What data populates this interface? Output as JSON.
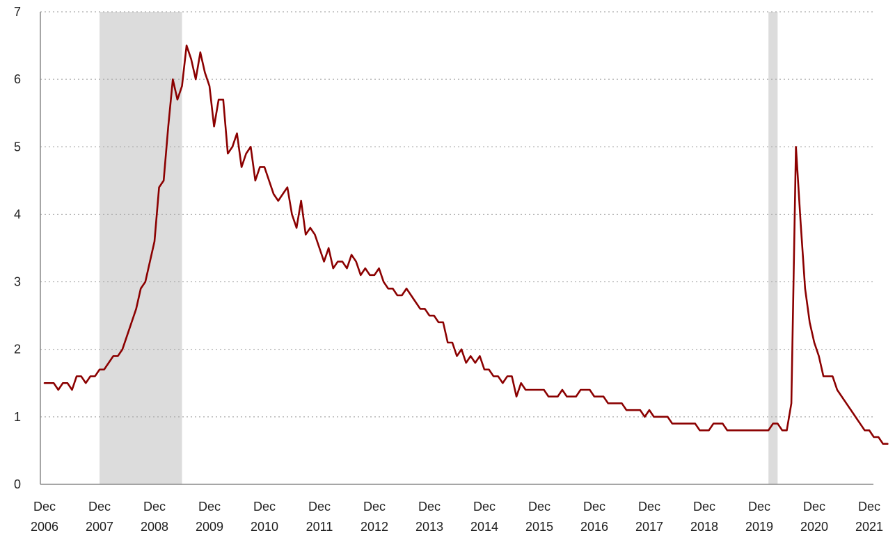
{
  "chart_data": {
    "type": "line",
    "title": "",
    "xlabel": "",
    "ylabel": "",
    "ylim": [
      0,
      7
    ],
    "y_ticks": [
      "0",
      "1",
      "2",
      "3",
      "4",
      "5",
      "6",
      "7"
    ],
    "grid": "horizontal dotted",
    "x_tick_labels": [
      {
        "month": "Dec",
        "year": "2006"
      },
      {
        "month": "Dec",
        "year": "2007"
      },
      {
        "month": "Dec",
        "year": "2008"
      },
      {
        "month": "Dec",
        "year": "2009"
      },
      {
        "month": "Dec",
        "year": "2010"
      },
      {
        "month": "Dec",
        "year": "2011"
      },
      {
        "month": "Dec",
        "year": "2012"
      },
      {
        "month": "Dec",
        "year": "2013"
      },
      {
        "month": "Dec",
        "year": "2014"
      },
      {
        "month": "Dec",
        "year": "2015"
      },
      {
        "month": "Dec",
        "year": "2016"
      },
      {
        "month": "Dec",
        "year": "2017"
      },
      {
        "month": "Dec",
        "year": "2018"
      },
      {
        "month": "Dec",
        "year": "2019"
      },
      {
        "month": "Dec",
        "year": "2020"
      },
      {
        "month": "Dec",
        "year": "2021"
      }
    ],
    "recessions": [
      {
        "start": "2007-12",
        "end": "2009-06"
      },
      {
        "start": "2020-02",
        "end": "2020-04"
      }
    ],
    "colors": {
      "line": "#8B0000",
      "recession": "#DCDCDC",
      "grid": "#AAAAAA",
      "axis": "#888888"
    },
    "series": [
      {
        "start": "2006-12",
        "frequency": "monthly",
        "values": [
          1.5,
          1.5,
          1.5,
          1.4,
          1.5,
          1.5,
          1.4,
          1.6,
          1.6,
          1.5,
          1.6,
          1.6,
          1.7,
          1.7,
          1.8,
          1.9,
          1.9,
          2.0,
          2.2,
          2.4,
          2.6,
          2.9,
          3.0,
          3.3,
          3.6,
          4.4,
          4.5,
          5.3,
          6.0,
          5.7,
          5.9,
          6.5,
          6.3,
          6.0,
          6.4,
          6.1,
          5.9,
          5.3,
          5.7,
          5.7,
          4.9,
          5.0,
          5.2,
          4.7,
          4.9,
          5.0,
          4.5,
          4.7,
          4.7,
          4.5,
          4.3,
          4.2,
          4.3,
          4.4,
          4.0,
          3.8,
          4.2,
          3.7,
          3.8,
          3.7,
          3.5,
          3.3,
          3.5,
          3.2,
          3.3,
          3.3,
          3.2,
          3.4,
          3.3,
          3.1,
          3.2,
          3.1,
          3.1,
          3.2,
          3.0,
          2.9,
          2.9,
          2.8,
          2.8,
          2.9,
          2.8,
          2.7,
          2.6,
          2.6,
          2.5,
          2.5,
          2.4,
          2.4,
          2.1,
          2.1,
          1.9,
          2.0,
          1.8,
          1.9,
          1.8,
          1.9,
          1.7,
          1.7,
          1.6,
          1.6,
          1.5,
          1.6,
          1.6,
          1.3,
          1.5,
          1.4,
          1.4,
          1.4,
          1.4,
          1.4,
          1.3,
          1.3,
          1.3,
          1.4,
          1.3,
          1.3,
          1.3,
          1.4,
          1.4,
          1.4,
          1.3,
          1.3,
          1.3,
          1.2,
          1.2,
          1.2,
          1.2,
          1.1,
          1.1,
          1.1,
          1.1,
          1.0,
          1.1,
          1.0,
          1.0,
          1.0,
          1.0,
          0.9,
          0.9,
          0.9,
          0.9,
          0.9,
          0.9,
          0.8,
          0.8,
          0.8,
          0.9,
          0.9,
          0.9,
          0.8,
          0.8,
          0.8,
          0.8,
          0.8,
          0.8,
          0.8,
          0.8,
          0.8,
          0.8,
          0.9,
          0.9,
          0.8,
          0.8,
          1.2,
          5.0,
          3.9,
          2.9,
          2.4,
          2.1,
          1.9,
          1.6,
          1.6,
          1.6,
          1.4,
          1.3,
          1.2,
          1.1,
          1.0,
          0.9,
          0.8,
          0.8,
          0.7,
          0.7,
          0.6,
          0.6
        ]
      }
    ]
  }
}
